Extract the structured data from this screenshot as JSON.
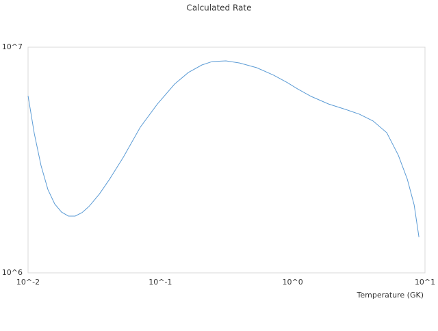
{
  "chart_data": {
    "type": "line",
    "title": "Calculated Rate",
    "x_label": "Temperature (GK)",
    "x_log": true,
    "y_log": true,
    "xlim": [
      0.01,
      10
    ],
    "ylim": [
      1000000,
      10000000
    ],
    "xticks": [
      {
        "value": 0.01,
        "label": "10^-2"
      },
      {
        "value": 0.1,
        "label": "10^-1"
      },
      {
        "value": 1,
        "label": "10^0"
      },
      {
        "value": 10,
        "label": "10^1"
      }
    ],
    "yticks": [
      {
        "value": 1000000,
        "label": "10^6"
      },
      {
        "value": 10000000,
        "label": "10^7"
      }
    ],
    "x": [
      0.01,
      0.01114,
      0.01253,
      0.01413,
      0.0159,
      0.0179,
      0.0202,
      0.0227,
      0.0256,
      0.0289,
      0.0345,
      0.0413,
      0.0524,
      0.0705,
      0.095,
      0.128,
      0.1625,
      0.206,
      0.247,
      0.313,
      0.397,
      0.535,
      0.72,
      0.914,
      1.09,
      1.38,
      1.87,
      2.51,
      3.19,
      4.05,
      5.14,
      6.29,
      7.35,
      8.28,
      9.0
    ],
    "series": [
      {
        "color": "#5b9bd5",
        "values": [
          6090000,
          4150000,
          2990000,
          2340000,
          2020000,
          1860000,
          1785000,
          1785000,
          1850000,
          1970000,
          2230000,
          2600000,
          3250000,
          4420000,
          5600000,
          6860000,
          7720000,
          8340000,
          8640000,
          8700000,
          8510000,
          8110000,
          7510000,
          6960000,
          6530000,
          6050000,
          5600000,
          5300000,
          5050000,
          4710000,
          4180000,
          3320000,
          2600000,
          2000000,
          1440000
        ]
      }
    ]
  }
}
